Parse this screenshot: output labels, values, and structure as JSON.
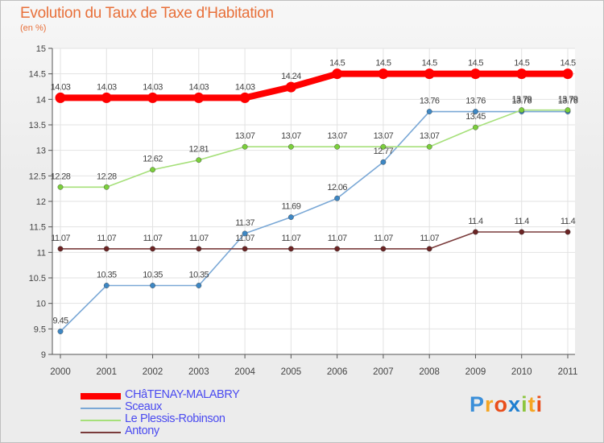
{
  "chart_data": {
    "type": "line",
    "title": "Evolution du Taux de Taxe d'Habitation",
    "subtitle": "(en %)",
    "x": [
      "2000",
      "2001",
      "2002",
      "2003",
      "2004",
      "2005",
      "2006",
      "2007",
      "2008",
      "2009",
      "2010",
      "2011"
    ],
    "ylim": [
      9,
      15
    ],
    "yticks": [
      "9",
      "9.5",
      "10",
      "10.5",
      "11",
      "11.5",
      "12",
      "12.5",
      "13",
      "13.5",
      "14",
      "14.5",
      "15"
    ],
    "grid": true,
    "legend_position": "bottom-left",
    "series": [
      {
        "name": "CHâTENAY-MALABRY",
        "color": "#ff0000",
        "width": 8,
        "marker": "#ff0000",
        "values": [
          14.03,
          14.03,
          14.03,
          14.03,
          14.03,
          14.24,
          14.5,
          14.5,
          14.5,
          14.5,
          14.5,
          14.5
        ],
        "labels": [
          "14.03",
          "14.03",
          "14.03",
          "14.03",
          "14.03",
          "14.24",
          "14.5",
          "14.5",
          "14.5",
          "14.5",
          "14.5",
          "14.5"
        ]
      },
      {
        "name": "Sceaux",
        "color": "#7aa8d6",
        "width": 1.6,
        "marker": "#3d87c4",
        "values": [
          9.45,
          10.35,
          10.35,
          10.35,
          11.37,
          11.69,
          12.06,
          12.77,
          13.76,
          13.76,
          13.76,
          13.76
        ],
        "labels": [
          "9.45",
          "10.35",
          "10.35",
          "10.35",
          "11.37",
          "11.69",
          "12.06",
          "12.77",
          "13.76",
          "13.76",
          "13.76",
          "13.76"
        ]
      },
      {
        "name": "Le Plessis-Robinson",
        "color": "#a6e07a",
        "width": 1.6,
        "marker": "#7bcf3c",
        "values": [
          12.28,
          12.28,
          12.62,
          12.81,
          13.07,
          13.07,
          13.07,
          13.07,
          13.07,
          13.45,
          13.79,
          13.79
        ],
        "labels": [
          "12.28",
          "12.28",
          "12.62",
          "12.81",
          "13.07",
          "13.07",
          "13.07",
          "13.07",
          "13.07",
          "13.45",
          "13.79",
          "13.79"
        ]
      },
      {
        "name": "Antony",
        "color": "#7a3b3b",
        "width": 1.6,
        "marker": "#6b2424",
        "values": [
          11.07,
          11.07,
          11.07,
          11.07,
          11.07,
          11.07,
          11.07,
          11.07,
          11.07,
          11.4,
          11.4,
          11.4
        ],
        "labels": [
          "11.07",
          "11.07",
          "11.07",
          "11.07",
          "11.07",
          "11.07",
          "11.07",
          "11.07",
          "11.07",
          "11.4",
          "11.4",
          "11.4"
        ]
      }
    ]
  },
  "logo": {
    "letters": [
      "P",
      "r",
      "o",
      "x",
      "i",
      "t",
      "i"
    ],
    "colors": [
      "#3b8fd9",
      "#f5a623",
      "#e94e1b",
      "#1f7fd0",
      "#8dc63f",
      "#f5a623",
      "#e94e1b"
    ]
  }
}
